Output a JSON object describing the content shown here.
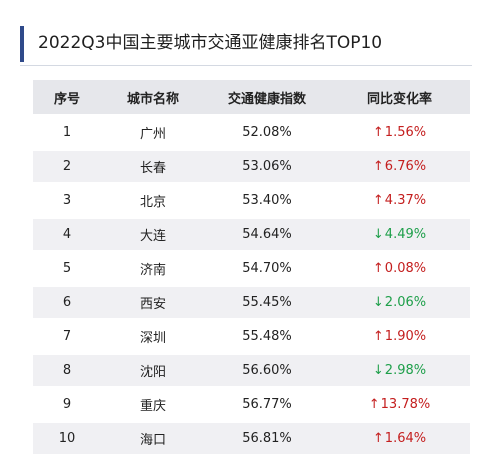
{
  "title": "2022Q3中国主要城市交通亚健康排名TOP10",
  "colors": {
    "accent": "#2f4a8a",
    "header_bg": "#e6e7eb",
    "stripe_bg": "#f0f0f3",
    "up": "#c41e1e",
    "down": "#1e9f4a"
  },
  "table": {
    "headers": [
      "序号",
      "城市名称",
      "交通健康指数",
      "同比变化率"
    ],
    "rows": [
      {
        "rank": "1",
        "city": "广州",
        "index": "52.08%",
        "direction": "up",
        "change": "1.56%"
      },
      {
        "rank": "2",
        "city": "长春",
        "index": "53.06%",
        "direction": "up",
        "change": "6.76%"
      },
      {
        "rank": "3",
        "city": "北京",
        "index": "53.40%",
        "direction": "up",
        "change": "4.37%"
      },
      {
        "rank": "4",
        "city": "大连",
        "index": "54.64%",
        "direction": "down",
        "change": "4.49%"
      },
      {
        "rank": "5",
        "city": "济南",
        "index": "54.70%",
        "direction": "up",
        "change": "0.08%"
      },
      {
        "rank": "6",
        "city": "西安",
        "index": "55.45%",
        "direction": "down",
        "change": "2.06%"
      },
      {
        "rank": "7",
        "city": "深圳",
        "index": "55.48%",
        "direction": "up",
        "change": "1.90%"
      },
      {
        "rank": "8",
        "city": "沈阳",
        "index": "56.60%",
        "direction": "down",
        "change": "2.98%"
      },
      {
        "rank": "9",
        "city": "重庆",
        "index": "56.77%",
        "direction": "up",
        "change": "13.78%"
      },
      {
        "rank": "10",
        "city": "海口",
        "index": "56.81%",
        "direction": "up",
        "change": "1.64%"
      }
    ]
  }
}
